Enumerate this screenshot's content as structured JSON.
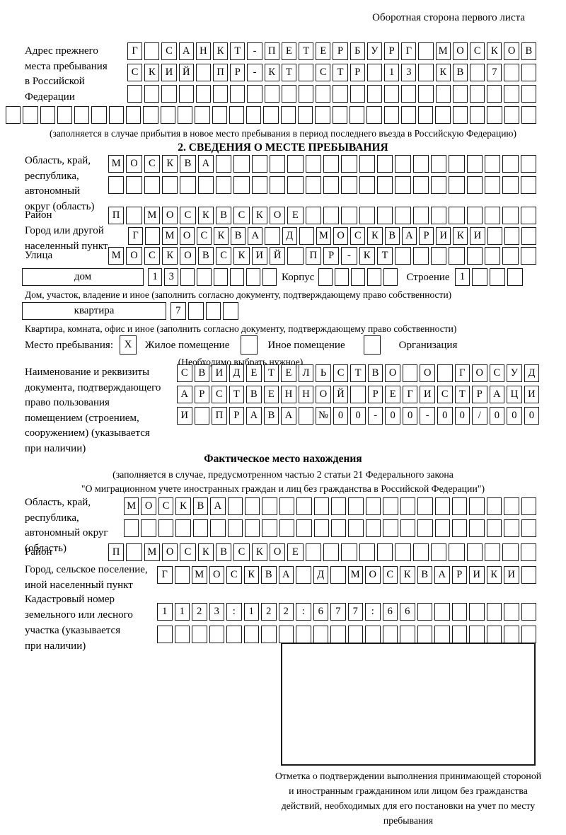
{
  "page": {
    "header": "Оборотная сторона первого листа"
  },
  "prev_address": {
    "label_lines": [
      "Адрес прежнего",
      "места пребывания",
      "в Российской",
      "Федерации"
    ],
    "rows": [
      {
        "t": "Г САНКТ-ПЕТЕРБУРГ МОСКОВ",
        "n": 24
      },
      {
        "t": "СКИЙ ПР-КТ СТР 13 КВ 7",
        "n": 24
      },
      {
        "t": "",
        "n": 24
      },
      {
        "t": "",
        "n": 31
      }
    ],
    "caption": "(заполняется в случае прибытия в новое место пребывания в период последнего въезда в Российскую Федерацию)"
  },
  "section2": {
    "title": "2. СВЕДЕНИЯ О МЕСТЕ ПРЕБЫВАНИЯ",
    "oblast": {
      "label_lines": [
        "Область, край,",
        "республика,",
        "автономный",
        "округ (область)"
      ],
      "rows": [
        {
          "t": "МОСКВА",
          "n": 24
        },
        {
          "t": "",
          "n": 24
        }
      ]
    },
    "rayon": {
      "label": "Район",
      "row": {
        "t": "П МОСКВСКОЕ",
        "n": 24
      }
    },
    "gorod": {
      "label_lines": [
        "Город или другой",
        "населенный пункт"
      ],
      "row": {
        "t": "Г МОСКВА Д МОСКВАРИКИ",
        "n": 24
      }
    },
    "ulitsa": {
      "label": "Улица",
      "row": {
        "t": "МОСКОВСКИЙ ПР-КТ",
        "n": 24
      }
    },
    "dom": {
      "box_label": "дом",
      "cells": {
        "t": "13",
        "n": 8
      },
      "korpus_label": "Корпус",
      "korpus_cells": {
        "t": "",
        "n": 5
      },
      "stroenie_label": "Строение",
      "stroenie_cells": {
        "t": "1",
        "n": 4
      },
      "caption": "Дом, участок, владение и иное (заполнить согласно документу, подтверждающему право собственности)"
    },
    "kvartira": {
      "box_label": "квартира",
      "cells": {
        "t": "7",
        "n": 4
      },
      "caption": "Квартира, комната, офис и иное (заполнить согласно документу, подтверждающему право собственности)"
    },
    "mesto": {
      "label": "Место пребывания:",
      "options": [
        {
          "label": "Жилое помещение",
          "checked": "X"
        },
        {
          "label": "Иное помещение",
          "checked": ""
        },
        {
          "label": "Организация",
          "checked": ""
        }
      ],
      "note": "(Необходимо выбрать нужное)"
    },
    "document": {
      "label_lines": [
        "Наименование и реквизиты",
        "документа, подтверждающего",
        "право пользования",
        "помещением (строением,",
        "сооружением) (указывается",
        "при наличии)"
      ],
      "rows": [
        {
          "t": "СВИДЕТЕЛЬСТВО О ГОСУД",
          "n": 21
        },
        {
          "t": "АРСТВЕННОЙ РЕГИСТРАЦИ",
          "n": 21
        },
        {
          "t": "И ПРАВА №00-00-00/000",
          "n": 21
        }
      ]
    }
  },
  "fact": {
    "title": "Фактическое место нахождения",
    "caption_lines": [
      "(заполняется в случае, предусмотренном частью 2 статьи 21 Федерального закона",
      "\"О миграционном учете иностранных граждан и лиц без гражданства в Российской Федерации\")"
    ],
    "oblast": {
      "label_lines": [
        "Область, край,",
        "республика,",
        "автономный округ",
        "(область)"
      ],
      "rows": [
        {
          "t": "МОСКВА",
          "n": 24
        },
        {
          "t": "",
          "n": 24
        }
      ]
    },
    "rayon": {
      "label": "Район",
      "row": {
        "t": "П МОСКВСКОЕ",
        "n": 24
      }
    },
    "gorod": {
      "label_lines": [
        "Город, сельское поселение,",
        "иной населенный пункт"
      ],
      "row": {
        "t": "Г МОСКВА Д МОСКВАРИКИ",
        "n": 22
      }
    },
    "kadastr": {
      "label_lines": [
        "Кадастровый номер",
        "земельного или лесного",
        "участка (указывается",
        "при наличии)"
      ],
      "rows": [
        {
          "t": "1123:122:677:66",
          "n": 22
        },
        {
          "t": "",
          "n": 22
        }
      ]
    },
    "stamp_caption": "Отметка о подтверждении выполнения принимающей стороной и иностранным гражданином или лицом без гражданства действий, необходимых для его постановки на учет по месту пребывания"
  }
}
